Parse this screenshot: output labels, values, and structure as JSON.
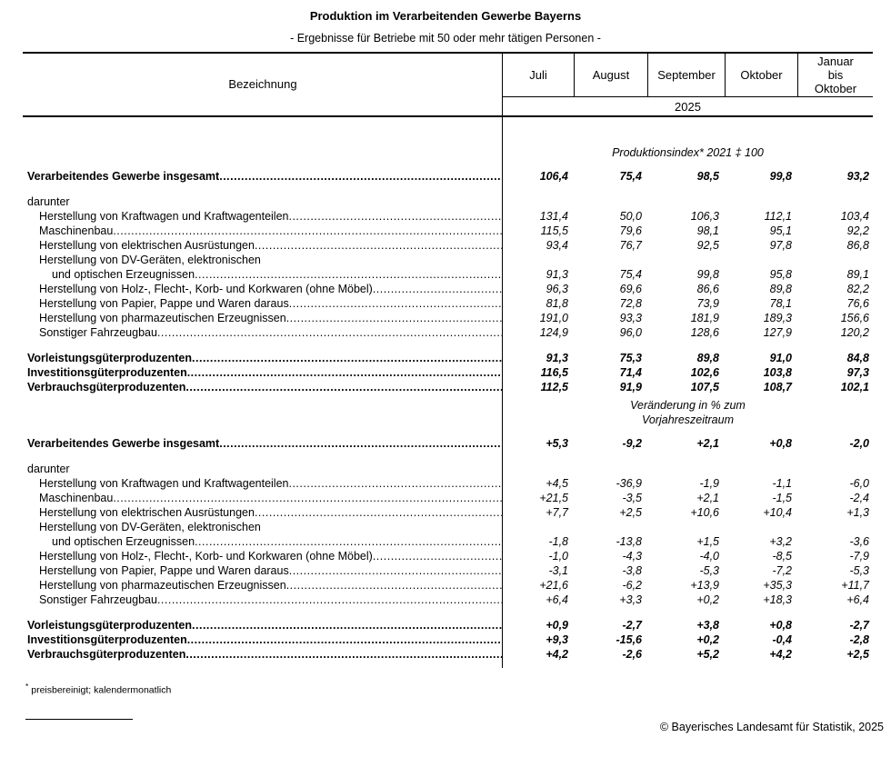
{
  "page": {
    "title": "Produktion im Verarbeitenden Gewerbe Bayerns",
    "subtitle": "- Ergebnisse für Betriebe mit 50 oder mehr tätigen Personen -",
    "footnote_marker": "*",
    "footnote_text": "preisbereinigt; kalendermonatlich",
    "copyright": "© Bayerisches Landesamt für Statistik, 2025"
  },
  "table": {
    "label_header": "Bezeichnung",
    "columns": [
      "Juli",
      "August",
      "September",
      "Oktober",
      "Januar\nbis\nOktober"
    ],
    "year": "2025",
    "sections": [
      {
        "heading_lines": [
          "Produktionsindex* 2021 ‡ 100"
        ],
        "rows": [
          {
            "label": "Verarbeitendes Gewerbe insgesamt",
            "bold": true,
            "indent": 0,
            "leader": true,
            "values": [
              "106,4",
              "75,4",
              "98,5",
              "99,8",
              "93,2"
            ]
          },
          {
            "type": "spacer"
          },
          {
            "label": "darunter",
            "bold": false,
            "indent": 0,
            "leader": false,
            "values": null
          },
          {
            "label": "Herstellung von Kraftwagen und Kraftwagenteilen",
            "bold": false,
            "indent": 1,
            "leader": true,
            "values": [
              "131,4",
              "50,0",
              "106,3",
              "112,1",
              "103,4"
            ]
          },
          {
            "label": "Maschinenbau",
            "bold": false,
            "indent": 1,
            "leader": true,
            "values": [
              "115,5",
              "79,6",
              "98,1",
              "95,1",
              "92,2"
            ]
          },
          {
            "label": "Herstellung von elektrischen Ausrüstungen",
            "bold": false,
            "indent": 1,
            "leader": true,
            "values": [
              "93,4",
              "76,7",
              "92,5",
              "97,8",
              "86,8"
            ]
          },
          {
            "label": "Herstellung von DV-Geräten, elektronischen",
            "bold": false,
            "indent": 1,
            "leader": false,
            "values": null
          },
          {
            "label": "und optischen Erzeugnissen",
            "bold": false,
            "indent": 2,
            "leader": true,
            "values": [
              "91,3",
              "75,4",
              "99,8",
              "95,8",
              "89,1"
            ]
          },
          {
            "label": "Herstellung von Holz-, Flecht-, Korb- und Korkwaren (ohne Möbel)",
            "bold": false,
            "indent": 1,
            "leader": true,
            "values": [
              "96,3",
              "69,6",
              "86,6",
              "89,8",
              "82,2"
            ]
          },
          {
            "label": "Herstellung von Papier, Pappe und Waren daraus",
            "bold": false,
            "indent": 1,
            "leader": true,
            "values": [
              "81,8",
              "72,8",
              "73,9",
              "78,1",
              "76,6"
            ]
          },
          {
            "label": "Herstellung von pharmazeutischen Erzeugnissen",
            "bold": false,
            "indent": 1,
            "leader": true,
            "values": [
              "191,0",
              "93,3",
              "181,9",
              "189,3",
              "156,6"
            ]
          },
          {
            "label": "Sonstiger Fahrzeugbau",
            "bold": false,
            "indent": 1,
            "leader": true,
            "values": [
              "124,9",
              "96,0",
              "128,6",
              "127,9",
              "120,2"
            ]
          },
          {
            "type": "spacer"
          },
          {
            "label": "Vorleistungsgüterproduzenten",
            "bold": true,
            "indent": 0,
            "leader": true,
            "values": [
              "91,3",
              "75,3",
              "89,8",
              "91,0",
              "84,8"
            ]
          },
          {
            "label": "Investitionsgüterproduzenten",
            "bold": true,
            "indent": 0,
            "leader": true,
            "values": [
              "116,5",
              "71,4",
              "102,6",
              "103,8",
              "97,3"
            ]
          },
          {
            "label": "Verbrauchsgüterproduzenten",
            "bold": true,
            "indent": 0,
            "leader": true,
            "values": [
              "112,5",
              "91,9",
              "107,5",
              "108,7",
              "102,1"
            ]
          }
        ]
      },
      {
        "heading_lines": [
          "Veränderung in % zum",
          "Vorjahreszeitraum"
        ],
        "rows": [
          {
            "label": "Verarbeitendes Gewerbe insgesamt",
            "bold": true,
            "indent": 0,
            "leader": true,
            "values": [
              "+5,3",
              "-9,2",
              "+2,1",
              "+0,8",
              "-2,0"
            ]
          },
          {
            "type": "spacer"
          },
          {
            "label": "darunter",
            "bold": false,
            "indent": 0,
            "leader": false,
            "values": null
          },
          {
            "label": "Herstellung von Kraftwagen und Kraftwagenteilen",
            "bold": false,
            "indent": 1,
            "leader": true,
            "values": [
              "+4,5",
              "-36,9",
              "-1,9",
              "-1,1",
              "-6,0"
            ]
          },
          {
            "label": "Maschinenbau",
            "bold": false,
            "indent": 1,
            "leader": true,
            "values": [
              "+21,5",
              "-3,5",
              "+2,1",
              "-1,5",
              "-2,4"
            ]
          },
          {
            "label": "Herstellung von elektrischen Ausrüstungen",
            "bold": false,
            "indent": 1,
            "leader": true,
            "values": [
              "+7,7",
              "+2,5",
              "+10,6",
              "+10,4",
              "+1,3"
            ]
          },
          {
            "label": "Herstellung von DV-Geräten, elektronischen",
            "bold": false,
            "indent": 1,
            "leader": false,
            "values": null
          },
          {
            "label": "und optischen Erzeugnissen",
            "bold": false,
            "indent": 2,
            "leader": true,
            "values": [
              "-1,8",
              "-13,8",
              "+1,5",
              "+3,2",
              "-3,6"
            ]
          },
          {
            "label": "Herstellung von Holz-, Flecht-, Korb- und Korkwaren (ohne Möbel)",
            "bold": false,
            "indent": 1,
            "leader": true,
            "values": [
              "-1,0",
              "-4,3",
              "-4,0",
              "-8,5",
              "-7,9"
            ]
          },
          {
            "label": "Herstellung von Papier, Pappe und Waren daraus",
            "bold": false,
            "indent": 1,
            "leader": true,
            "values": [
              "-3,1",
              "-3,8",
              "-5,3",
              "-7,2",
              "-5,3"
            ]
          },
          {
            "label": "Herstellung von pharmazeutischen Erzeugnissen",
            "bold": false,
            "indent": 1,
            "leader": true,
            "values": [
              "+21,6",
              "-6,2",
              "+13,9",
              "+35,3",
              "+11,7"
            ]
          },
          {
            "label": "Sonstiger Fahrzeugbau",
            "bold": false,
            "indent": 1,
            "leader": true,
            "values": [
              "+6,4",
              "+3,3",
              "+0,2",
              "+18,3",
              "+6,4"
            ]
          },
          {
            "type": "spacer"
          },
          {
            "label": "Vorleistungsgüterproduzenten",
            "bold": true,
            "indent": 0,
            "leader": true,
            "values": [
              "+0,9",
              "-2,7",
              "+3,8",
              "+0,8",
              "-2,7"
            ]
          },
          {
            "label": "Investitionsgüterproduzenten",
            "bold": true,
            "indent": 0,
            "leader": true,
            "values": [
              "+9,3",
              "-15,6",
              "+0,2",
              "-0,4",
              "-2,8"
            ]
          },
          {
            "label": "Verbrauchsgüterproduzenten",
            "bold": true,
            "indent": 0,
            "leader": true,
            "values": [
              "+4,2",
              "-2,6",
              "+5,2",
              "+4,2",
              "+2,5"
            ]
          }
        ]
      }
    ]
  }
}
